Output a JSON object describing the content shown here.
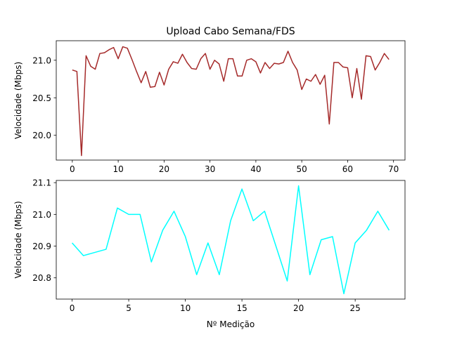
{
  "figure": {
    "title": "Upload Cabo Semana/FDS"
  },
  "chart_data": [
    {
      "type": "line",
      "title": "Upload Cabo Semana/FDS",
      "xlabel": "",
      "ylabel": "Velocidade (Mbps)",
      "xlim": [
        -3.5,
        72.5
      ],
      "ylim": [
        19.67,
        21.26
      ],
      "xticks": [
        "0",
        "10",
        "20",
        "30",
        "40",
        "50",
        "60",
        "70"
      ],
      "yticks": [
        "20.0",
        "20.5",
        "21.0"
      ],
      "color": "#a52a2a",
      "grid": false,
      "x": [
        0,
        1,
        2,
        3,
        4,
        5,
        6,
        7,
        8,
        9,
        10,
        11,
        12,
        13,
        14,
        15,
        16,
        17,
        18,
        19,
        20,
        21,
        22,
        23,
        24,
        25,
        26,
        27,
        28,
        29,
        30,
        31,
        32,
        33,
        34,
        35,
        36,
        37,
        38,
        39,
        40,
        41,
        42,
        43,
        44,
        45,
        46,
        47,
        48,
        49,
        50,
        51,
        52,
        53,
        54,
        55,
        56,
        57,
        58,
        59,
        60,
        61,
        62,
        63,
        64,
        65,
        66,
        67,
        68,
        69
      ],
      "values": [
        20.87,
        20.85,
        19.73,
        21.06,
        20.92,
        20.88,
        21.09,
        21.1,
        21.14,
        21.17,
        21.02,
        21.18,
        21.16,
        21.01,
        20.85,
        20.7,
        20.85,
        20.64,
        20.65,
        20.84,
        20.67,
        20.88,
        20.98,
        20.96,
        21.08,
        20.97,
        20.89,
        20.88,
        21.02,
        21.09,
        20.88,
        21.0,
        20.95,
        20.72,
        21.02,
        21.02,
        20.79,
        20.79,
        21.0,
        21.02,
        20.98,
        20.83,
        20.97,
        20.89,
        20.96,
        20.95,
        20.97,
        21.12,
        20.97,
        20.87,
        20.61,
        20.75,
        20.72,
        20.81,
        20.68,
        20.8,
        20.15,
        20.97,
        20.97,
        20.91,
        20.9,
        20.5,
        20.89,
        20.48,
        21.06,
        21.05,
        20.87,
        20.97,
        21.09,
        21.01
      ]
    },
    {
      "type": "line",
      "title": "",
      "xlabel": "Nº Medição",
      "ylabel": "Velocidade (Mbps)",
      "xlim": [
        -1.4,
        29.4
      ],
      "ylim": [
        20.733,
        21.107
      ],
      "xticks": [
        "0",
        "5",
        "10",
        "15",
        "20",
        "25"
      ],
      "yticks": [
        "20.8",
        "20.9",
        "21.0",
        "21.1"
      ],
      "color": "#00ffff",
      "grid": false,
      "x": [
        0,
        1,
        2,
        3,
        4,
        5,
        6,
        7,
        8,
        9,
        10,
        11,
        12,
        13,
        14,
        15,
        16,
        17,
        18,
        19,
        20,
        21,
        22,
        23,
        24,
        25,
        26,
        27,
        28
      ],
      "values": [
        20.91,
        20.87,
        20.88,
        20.89,
        21.02,
        21.0,
        21.0,
        20.85,
        20.95,
        21.01,
        20.93,
        20.81,
        20.91,
        20.81,
        20.98,
        21.08,
        20.98,
        21.01,
        20.9,
        20.79,
        21.09,
        20.81,
        20.92,
        20.93,
        20.75,
        20.91,
        20.95,
        21.01,
        20.95
      ]
    }
  ]
}
